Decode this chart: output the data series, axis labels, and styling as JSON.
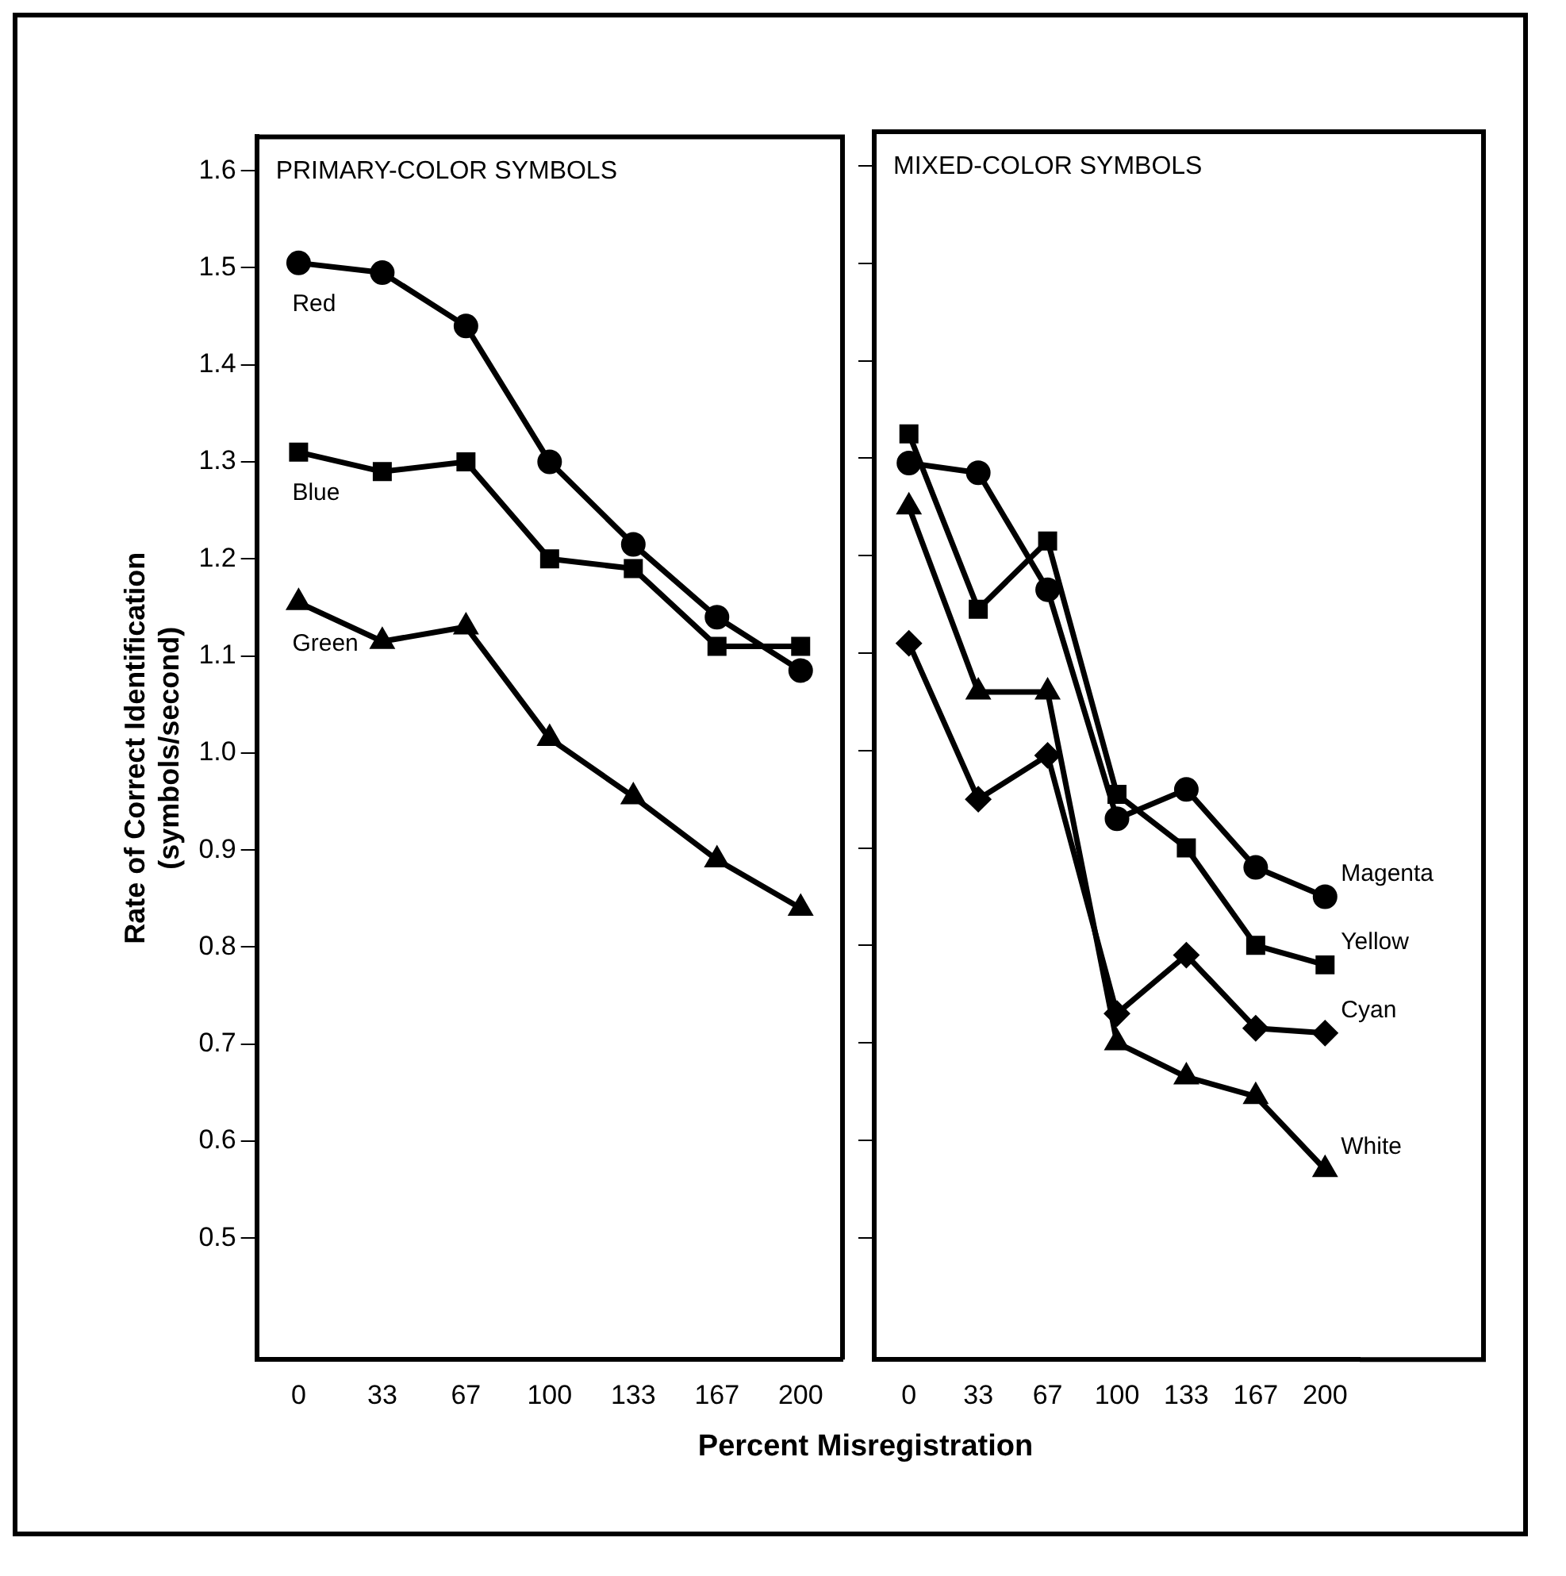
{
  "chart_data": [
    {
      "type": "line",
      "title": "PRIMARY-COLOR SYMBOLS",
      "xlabel": "Percent Misregistration",
      "ylabel": "Rate of Correct Identification\n(symbols/second)",
      "categories": [
        "0",
        "33",
        "67",
        "100",
        "133",
        "167",
        "200"
      ],
      "ylim": [
        0.375,
        1.635
      ],
      "yticks": [
        0.5,
        0.6,
        0.7,
        0.8,
        0.9,
        {
          "value": 1,
          "label": "1.0"
        },
        1.1,
        1.2,
        1.3,
        1.4,
        1.5,
        1.6
      ],
      "grid": false,
      "legend": false,
      "series": [
        {
          "name": "Red",
          "color": "#000000",
          "marker": "circle",
          "values": [
            1.505,
            1.495,
            1.44,
            1.3,
            1.215,
            1.14,
            1.085
          ]
        },
        {
          "name": "Blue",
          "color": "#000000",
          "marker": "square",
          "values": [
            1.31,
            1.29,
            1.3,
            1.2,
            1.19,
            1.11,
            1.11
          ]
        },
        {
          "name": "Green",
          "color": "#000000",
          "marker": "triangle",
          "values": [
            1.155,
            1.115,
            1.13,
            1.015,
            0.955,
            0.89,
            0.84
          ]
        }
      ]
    },
    {
      "type": "line",
      "title": "MIXED-COLOR SYMBOLS",
      "categories": [
        "0",
        "33",
        "67",
        "100",
        "133",
        "167",
        "200"
      ],
      "ylim": [
        0.375,
        1.635
      ],
      "yticks": [
        0.5,
        0.6,
        0.7,
        0.8,
        0.9,
        1,
        1.1,
        1.2,
        1.3,
        1.4,
        1.5,
        1.6
      ],
      "grid": false,
      "legend": false,
      "tick_labels": "x",
      "series": [
        {
          "name": "Magenta",
          "color": "#000000",
          "marker": "circle",
          "values": [
            1.295,
            1.285,
            1.165,
            0.93,
            0.96,
            0.88,
            0.85
          ]
        },
        {
          "name": "Yellow",
          "color": "#000000",
          "marker": "square",
          "values": [
            1.325,
            1.145,
            1.215,
            0.955,
            0.9,
            0.8,
            0.78
          ]
        },
        {
          "name": "Cyan",
          "color": "#000000",
          "marker": "diamond",
          "values": [
            1.11,
            0.95,
            0.995,
            0.73,
            0.79,
            0.715,
            0.71
          ]
        },
        {
          "name": "White",
          "color": "#000000",
          "marker": "triangle",
          "values": [
            1.25,
            1.06,
            1.06,
            0.7,
            0.665,
            0.645,
            0.57
          ]
        }
      ]
    }
  ]
}
